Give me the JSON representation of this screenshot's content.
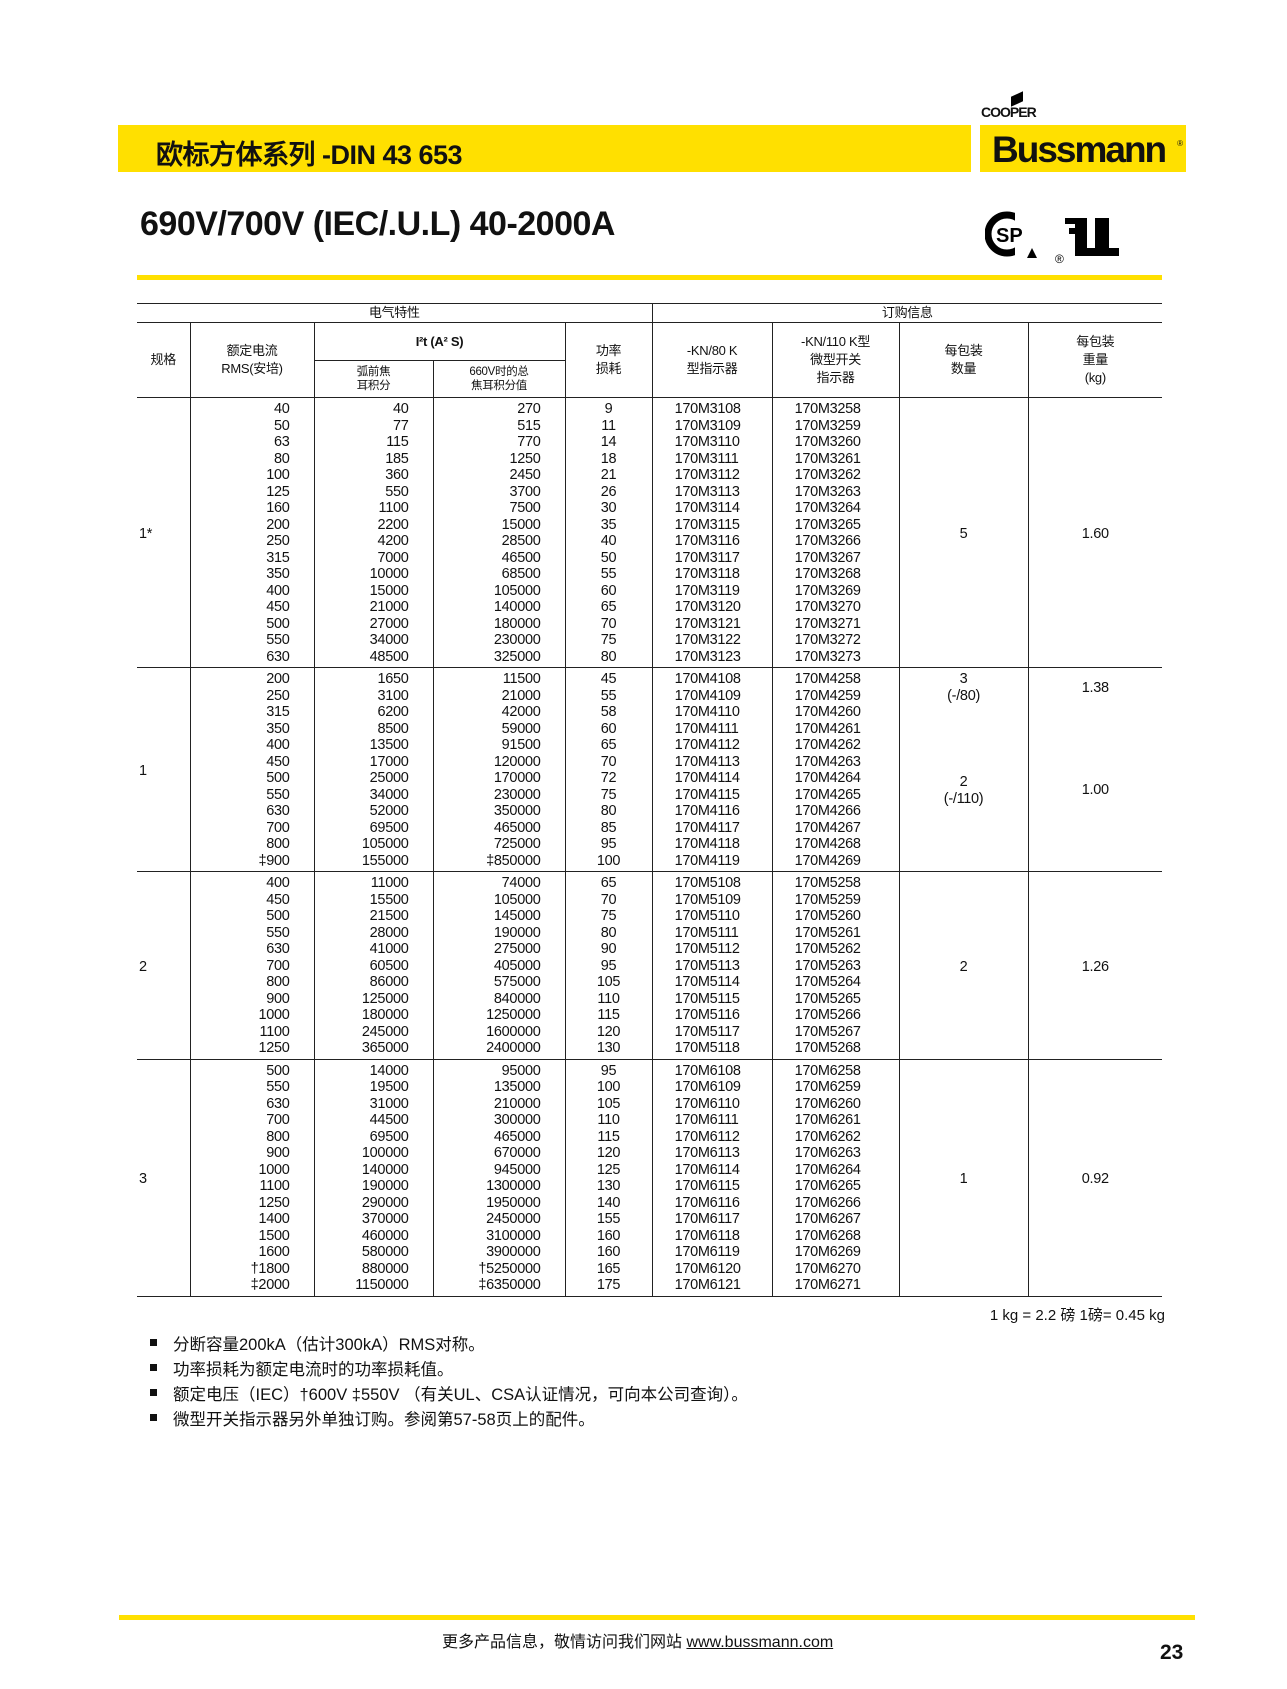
{
  "brand": {
    "cooper": "COOPER",
    "bussmann": "Bussmann",
    "registered": "®",
    "accent_color": "#ffe000"
  },
  "header": {
    "series_title": "欧标方体系列 -DIN 43 653",
    "title": "690V/700V (IEC/.U.L)  40-2000A"
  },
  "certifications": [
    "csa-logo",
    "ul-logo"
  ],
  "table": {
    "group_electrical": "电气特性",
    "group_ordering": "订购信息",
    "col_size": "规格",
    "col_rated": [
      "额定电流",
      "RMS(安培)"
    ],
    "col_i2t": "I²t (A² S)",
    "col_prearc": [
      "弧前焦",
      "耳积分"
    ],
    "col_total": [
      "660V时的总",
      "焦耳积分值"
    ],
    "col_power": [
      "功率",
      "损耗"
    ],
    "col_kn80": [
      "-KN/80 K",
      "型指示器"
    ],
    "col_kn110": [
      "-KN/110  K型",
      "微型开关",
      "指示器"
    ],
    "col_pack": [
      "每包装",
      "数量"
    ],
    "col_weight": [
      "每包装",
      "重量",
      "(kg)"
    ],
    "groups": [
      {
        "size": "1*",
        "pack": [
          {
            "qty": "5",
            "note": "",
            "weight": "1.60",
            "span": 16
          }
        ],
        "rows": [
          [
            "40",
            "40",
            "270",
            "9",
            "170M3108",
            "170M3258"
          ],
          [
            "50",
            "77",
            "515",
            "11",
            "170M3109",
            "170M3259"
          ],
          [
            "63",
            "115",
            "770",
            "14",
            "170M3110",
            "170M3260"
          ],
          [
            "80",
            "185",
            "1250",
            "18",
            "170M3111",
            "170M3261"
          ],
          [
            "100",
            "360",
            "2450",
            "21",
            "170M3112",
            "170M3262"
          ],
          [
            "125",
            "550",
            "3700",
            "26",
            "170M3113",
            "170M3263"
          ],
          [
            "160",
            "1100",
            "7500",
            "30",
            "170M3114",
            "170M3264"
          ],
          [
            "200",
            "2200",
            "15000",
            "35",
            "170M3115",
            "170M3265"
          ],
          [
            "250",
            "4200",
            "28500",
            "40",
            "170M3116",
            "170M3266"
          ],
          [
            "315",
            "7000",
            "46500",
            "50",
            "170M3117",
            "170M3267"
          ],
          [
            "350",
            "10000",
            "68500",
            "55",
            "170M3118",
            "170M3268"
          ],
          [
            "400",
            "15000",
            "105000",
            "60",
            "170M3119",
            "170M3269"
          ],
          [
            "450",
            "21000",
            "140000",
            "65",
            "170M3120",
            "170M3270"
          ],
          [
            "500",
            "27000",
            "180000",
            "70",
            "170M3121",
            "170M3271"
          ],
          [
            "550",
            "34000",
            "230000",
            "75",
            "170M3122",
            "170M3272"
          ],
          [
            "630",
            "48500",
            "325000",
            "80",
            "170M3123",
            "170M3273"
          ]
        ]
      },
      {
        "size": "1",
        "pack": [
          {
            "qty": "3",
            "note": "(-/80)",
            "weight": "1.38",
            "span": 6
          },
          {
            "qty": "2",
            "note": "(-/110)",
            "weight": "1.00",
            "span": 6
          }
        ],
        "rows": [
          [
            "200",
            "1650",
            "11500",
            "45",
            "170M4108",
            "170M4258"
          ],
          [
            "250",
            "3100",
            "21000",
            "55",
            "170M4109",
            "170M4259"
          ],
          [
            "315",
            "6200",
            "42000",
            "58",
            "170M4110",
            "170M4260"
          ],
          [
            "350",
            "8500",
            "59000",
            "60",
            "170M4111",
            "170M4261"
          ],
          [
            "400",
            "13500",
            "91500",
            "65",
            "170M4112",
            "170M4262"
          ],
          [
            "450",
            "17000",
            "120000",
            "70",
            "170M4113",
            "170M4263"
          ],
          [
            "500",
            "25000",
            "170000",
            "72",
            "170M4114",
            "170M4264"
          ],
          [
            "550",
            "34000",
            "230000",
            "75",
            "170M4115",
            "170M4265"
          ],
          [
            "630",
            "52000",
            "350000",
            "80",
            "170M4116",
            "170M4266"
          ],
          [
            "700",
            "69500",
            "465000",
            "85",
            "170M4117",
            "170M4267"
          ],
          [
            "800",
            "105000",
            "725000",
            "95",
            "170M4118",
            "170M4268"
          ],
          [
            "‡900",
            "155000",
            "‡850000",
            "100",
            "170M4119",
            "170M4269"
          ]
        ]
      },
      {
        "size": "2",
        "pack": [
          {
            "qty": "2",
            "note": "",
            "weight": "1.26",
            "span": 11
          }
        ],
        "rows": [
          [
            "400",
            "11000",
            "74000",
            "65",
            "170M5108",
            "170M5258"
          ],
          [
            "450",
            "15500",
            "105000",
            "70",
            "170M5109",
            "170M5259"
          ],
          [
            "500",
            "21500",
            "145000",
            "75",
            "170M5110",
            "170M5260"
          ],
          [
            "550",
            "28000",
            "190000",
            "80",
            "170M5111",
            "170M5261"
          ],
          [
            "630",
            "41000",
            "275000",
            "90",
            "170M5112",
            "170M5262"
          ],
          [
            "700",
            "60500",
            "405000",
            "95",
            "170M5113",
            "170M5263"
          ],
          [
            "800",
            "86000",
            "575000",
            "105",
            "170M5114",
            "170M5264"
          ],
          [
            "900",
            "125000",
            "840000",
            "110",
            "170M5115",
            "170M5265"
          ],
          [
            "1000",
            "180000",
            "1250000",
            "115",
            "170M5116",
            "170M5266"
          ],
          [
            "1100",
            "245000",
            "1600000",
            "120",
            "170M5117",
            "170M5267"
          ],
          [
            "1250",
            "365000",
            "2400000",
            "130",
            "170M5118",
            "170M5268"
          ]
        ]
      },
      {
        "size": "3",
        "pack": [
          {
            "qty": "1",
            "note": "",
            "weight": "0.92",
            "span": 14
          }
        ],
        "rows": [
          [
            "500",
            "14000",
            "95000",
            "95",
            "170M6108",
            "170M6258"
          ],
          [
            "550",
            "19500",
            "135000",
            "100",
            "170M6109",
            "170M6259"
          ],
          [
            "630",
            "31000",
            "210000",
            "105",
            "170M6110",
            "170M6260"
          ],
          [
            "700",
            "44500",
            "300000",
            "110",
            "170M6111",
            "170M6261"
          ],
          [
            "800",
            "69500",
            "465000",
            "115",
            "170M6112",
            "170M6262"
          ],
          [
            "900",
            "100000",
            "670000",
            "120",
            "170M6113",
            "170M6263"
          ],
          [
            "1000",
            "140000",
            "945000",
            "125",
            "170M6114",
            "170M6264"
          ],
          [
            "1100",
            "190000",
            "1300000",
            "130",
            "170M6115",
            "170M6265"
          ],
          [
            "1250",
            "290000",
            "1950000",
            "140",
            "170M6116",
            "170M6266"
          ],
          [
            "1400",
            "370000",
            "2450000",
            "155",
            "170M6117",
            "170M6267"
          ],
          [
            "1500",
            "460000",
            "3100000",
            "160",
            "170M6118",
            "170M6268"
          ],
          [
            "1600",
            "580000",
            "3900000",
            "160",
            "170M6119",
            "170M6269"
          ],
          [
            "†1800",
            "880000",
            "†5250000",
            "165",
            "170M6120",
            "170M6270"
          ],
          [
            "‡2000",
            "1150000",
            "‡6350000",
            "175",
            "170M6121",
            "170M6271"
          ]
        ]
      }
    ]
  },
  "conversion": "1 kg = 2.2 磅    1磅= 0.45 kg",
  "notes": [
    "分断容量200kA（估计300kA）RMS对称。",
    "功率损耗为额定电流时的功率损耗值。",
    "额定电压（IEC）†600V   ‡550V  （有关UL、CSA认证情况，可向本公司查询）。",
    "微型开关指示器另外单独订购。参阅第57-58页上的配件。"
  ],
  "footer": {
    "text": "更多产品信息，敬情访问我们网站 ",
    "link": "www.bussmann.com",
    "page": "23"
  }
}
